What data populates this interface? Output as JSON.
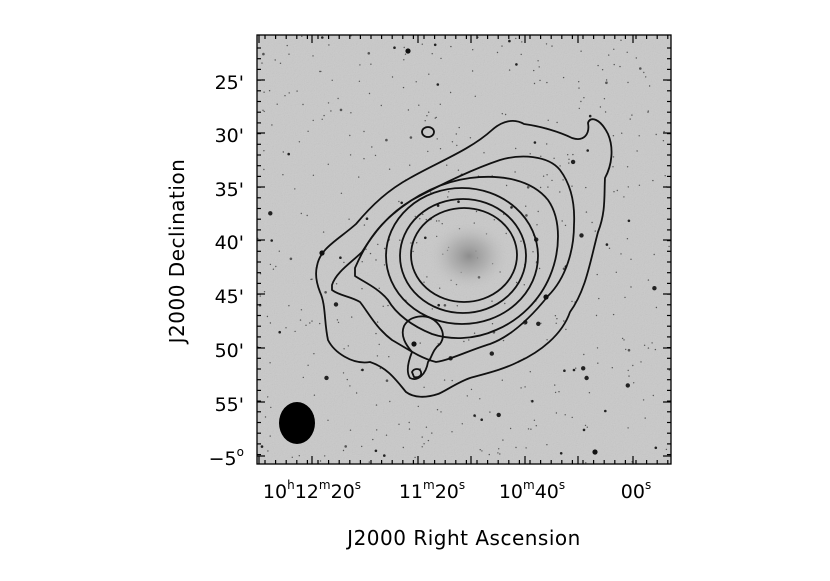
{
  "figure": {
    "x_axis_title": "J2000 Right Ascension",
    "y_axis_title": "J2000 Declination",
    "y_ticks": [
      {
        "label": "25'"
      },
      {
        "label": "30'"
      },
      {
        "label": "35'"
      },
      {
        "label": "40'"
      },
      {
        "label": "45'"
      },
      {
        "label": "50'"
      },
      {
        "label": "55'"
      },
      {
        "label": "−5",
        "sup": "o"
      }
    ],
    "x_ticks": [
      {
        "parts": [
          "10",
          "h",
          "12",
          "m",
          "20",
          "s"
        ]
      },
      {
        "parts": [
          "11",
          "m",
          "20",
          "s"
        ]
      },
      {
        "parts": [
          "10",
          "m",
          "40",
          "s"
        ]
      },
      {
        "parts": [
          "00",
          "s"
        ]
      }
    ],
    "colors": {
      "background": "#c9c9c9",
      "contour": "#111111",
      "frame": "#000000"
    },
    "elements": [
      "optical-greyscale-image",
      "hi-contours",
      "beam-ellipse",
      "galaxy-core"
    ]
  }
}
